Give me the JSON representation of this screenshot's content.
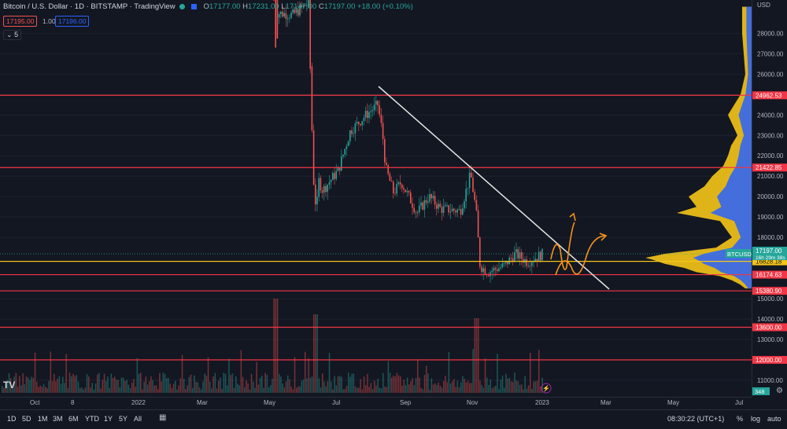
{
  "legend": {
    "symbol": "Bitcoin / U.S. Dollar · 1D · BITSTAMP · TradingView",
    "open_label": "O",
    "open": "17177.00",
    "high_label": "H",
    "high": "17231.00",
    "low_label": "L",
    "low": "17147.00",
    "close_label": "C",
    "close": "17197.00",
    "change": "+18.00 (+0.10%)"
  },
  "bid_box": "17195.00",
  "bid_spread": "1.00",
  "ask_box": "17196.00",
  "indicator_value": "5",
  "price_axis": {
    "currency": "USD",
    "ticks": [
      "28000.00",
      "27000.00",
      "26000.00",
      "25000.00",
      "24000.00",
      "23000.00",
      "22000.00",
      "21000.00",
      "20000.00",
      "19000.00",
      "18000.00",
      "15000.00",
      "14000.00",
      "13000.00",
      "11000.00"
    ],
    "ticks_v": [
      28000,
      27000,
      26000,
      25000,
      24000,
      23000,
      22000,
      21000,
      20000,
      19000,
      18000,
      15000,
      14000,
      13000,
      11000
    ],
    "ymin": 10500,
    "ymax": 29400
  },
  "levels": [
    {
      "label": "24962.53",
      "value": 24962.53
    },
    {
      "label": "21422.85",
      "value": 21422.85
    },
    {
      "label": "16174.63",
      "value": 16174.63
    },
    {
      "label": "15380.90",
      "value": 15380.9
    },
    {
      "label": "13600.00",
      "value": 13600.0
    },
    {
      "label": "12000.00",
      "value": 12000.0
    }
  ],
  "current_price": {
    "symbol": "BTCUSD",
    "price": "17197.00",
    "countdown": "16h 29m 38s",
    "value": 17197
  },
  "yellow_level": {
    "label": "16828.18",
    "value": 16828.18
  },
  "volume_label": "348",
  "time_axis": [
    "Oct",
    "8",
    "2022",
    "Mar",
    "May",
    "Jul",
    "Sep",
    "Nov",
    "2023",
    "Mar",
    "May",
    "Jul"
  ],
  "bottom_bar": {
    "ranges": [
      "1D",
      "5D",
      "1M",
      "3M",
      "6M",
      "YTD",
      "1Y",
      "5Y",
      "All"
    ],
    "clock": "08:30:22 (UTC+1)",
    "percent": "%",
    "log": "log",
    "auto": "auto"
  },
  "colors": {
    "background": "#131722",
    "up": "#26a69a",
    "down": "#ef5350",
    "level_line": "#f23645",
    "yellow": "#f5c518",
    "profile_blue": "#2962ff",
    "drawing_orange": "#f7931a"
  }
}
